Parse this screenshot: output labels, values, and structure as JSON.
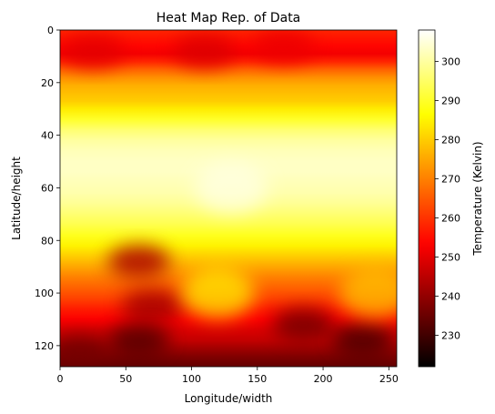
{
  "chart_data": {
    "type": "heatmap",
    "title": "Heat Map Rep. of Data",
    "xlabel": "Longitude/width",
    "ylabel": "Latitude/height",
    "xlim": [
      0,
      256
    ],
    "ylim": [
      128,
      0
    ],
    "x_ticks": [
      0,
      50,
      100,
      150,
      200,
      250
    ],
    "y_ticks": [
      0,
      20,
      40,
      60,
      80,
      100,
      120
    ],
    "colormap": "hot",
    "colorbar": {
      "label": "Temperature (Kelvin)",
      "range": [
        222,
        308
      ],
      "ticks": [
        230,
        240,
        250,
        260,
        270,
        280,
        290,
        300
      ]
    },
    "row_profile": {
      "rows": [
        0,
        3,
        6,
        9,
        12,
        15,
        18,
        21,
        24,
        27,
        30,
        34,
        38,
        42,
        46,
        50,
        54,
        58,
        62,
        66,
        70,
        74,
        78,
        82,
        86,
        90,
        94,
        98,
        102,
        106,
        110,
        114,
        118,
        121,
        124,
        127
      ],
      "temperatures": [
        258,
        256,
        254,
        252,
        258,
        266,
        272,
        276,
        278,
        280,
        284,
        290,
        296,
        300,
        302,
        303,
        303,
        302,
        301,
        299,
        296,
        293,
        289,
        285,
        280,
        275,
        270,
        266,
        262,
        257,
        253,
        249,
        246,
        242,
        238,
        235
      ]
    },
    "cold_regions": [
      {
        "x": 25,
        "y": 8,
        "temperature": 250
      },
      {
        "x": 110,
        "y": 8,
        "temperature": 249
      },
      {
        "x": 170,
        "y": 6,
        "temperature": 251
      },
      {
        "x": 60,
        "y": 88,
        "temperature": 243
      },
      {
        "x": 70,
        "y": 105,
        "temperature": 242
      },
      {
        "x": 60,
        "y": 118,
        "temperature": 232
      },
      {
        "x": 185,
        "y": 112,
        "temperature": 236
      },
      {
        "x": 230,
        "y": 118,
        "temperature": 231
      },
      {
        "x": 15,
        "y": 122,
        "temperature": 236
      }
    ],
    "warm_regions": [
      {
        "x": 120,
        "y": 100,
        "temperature": 286
      },
      {
        "x": 130,
        "y": 60,
        "temperature": 306
      },
      {
        "x": 240,
        "y": 100,
        "temperature": 280
      }
    ]
  }
}
